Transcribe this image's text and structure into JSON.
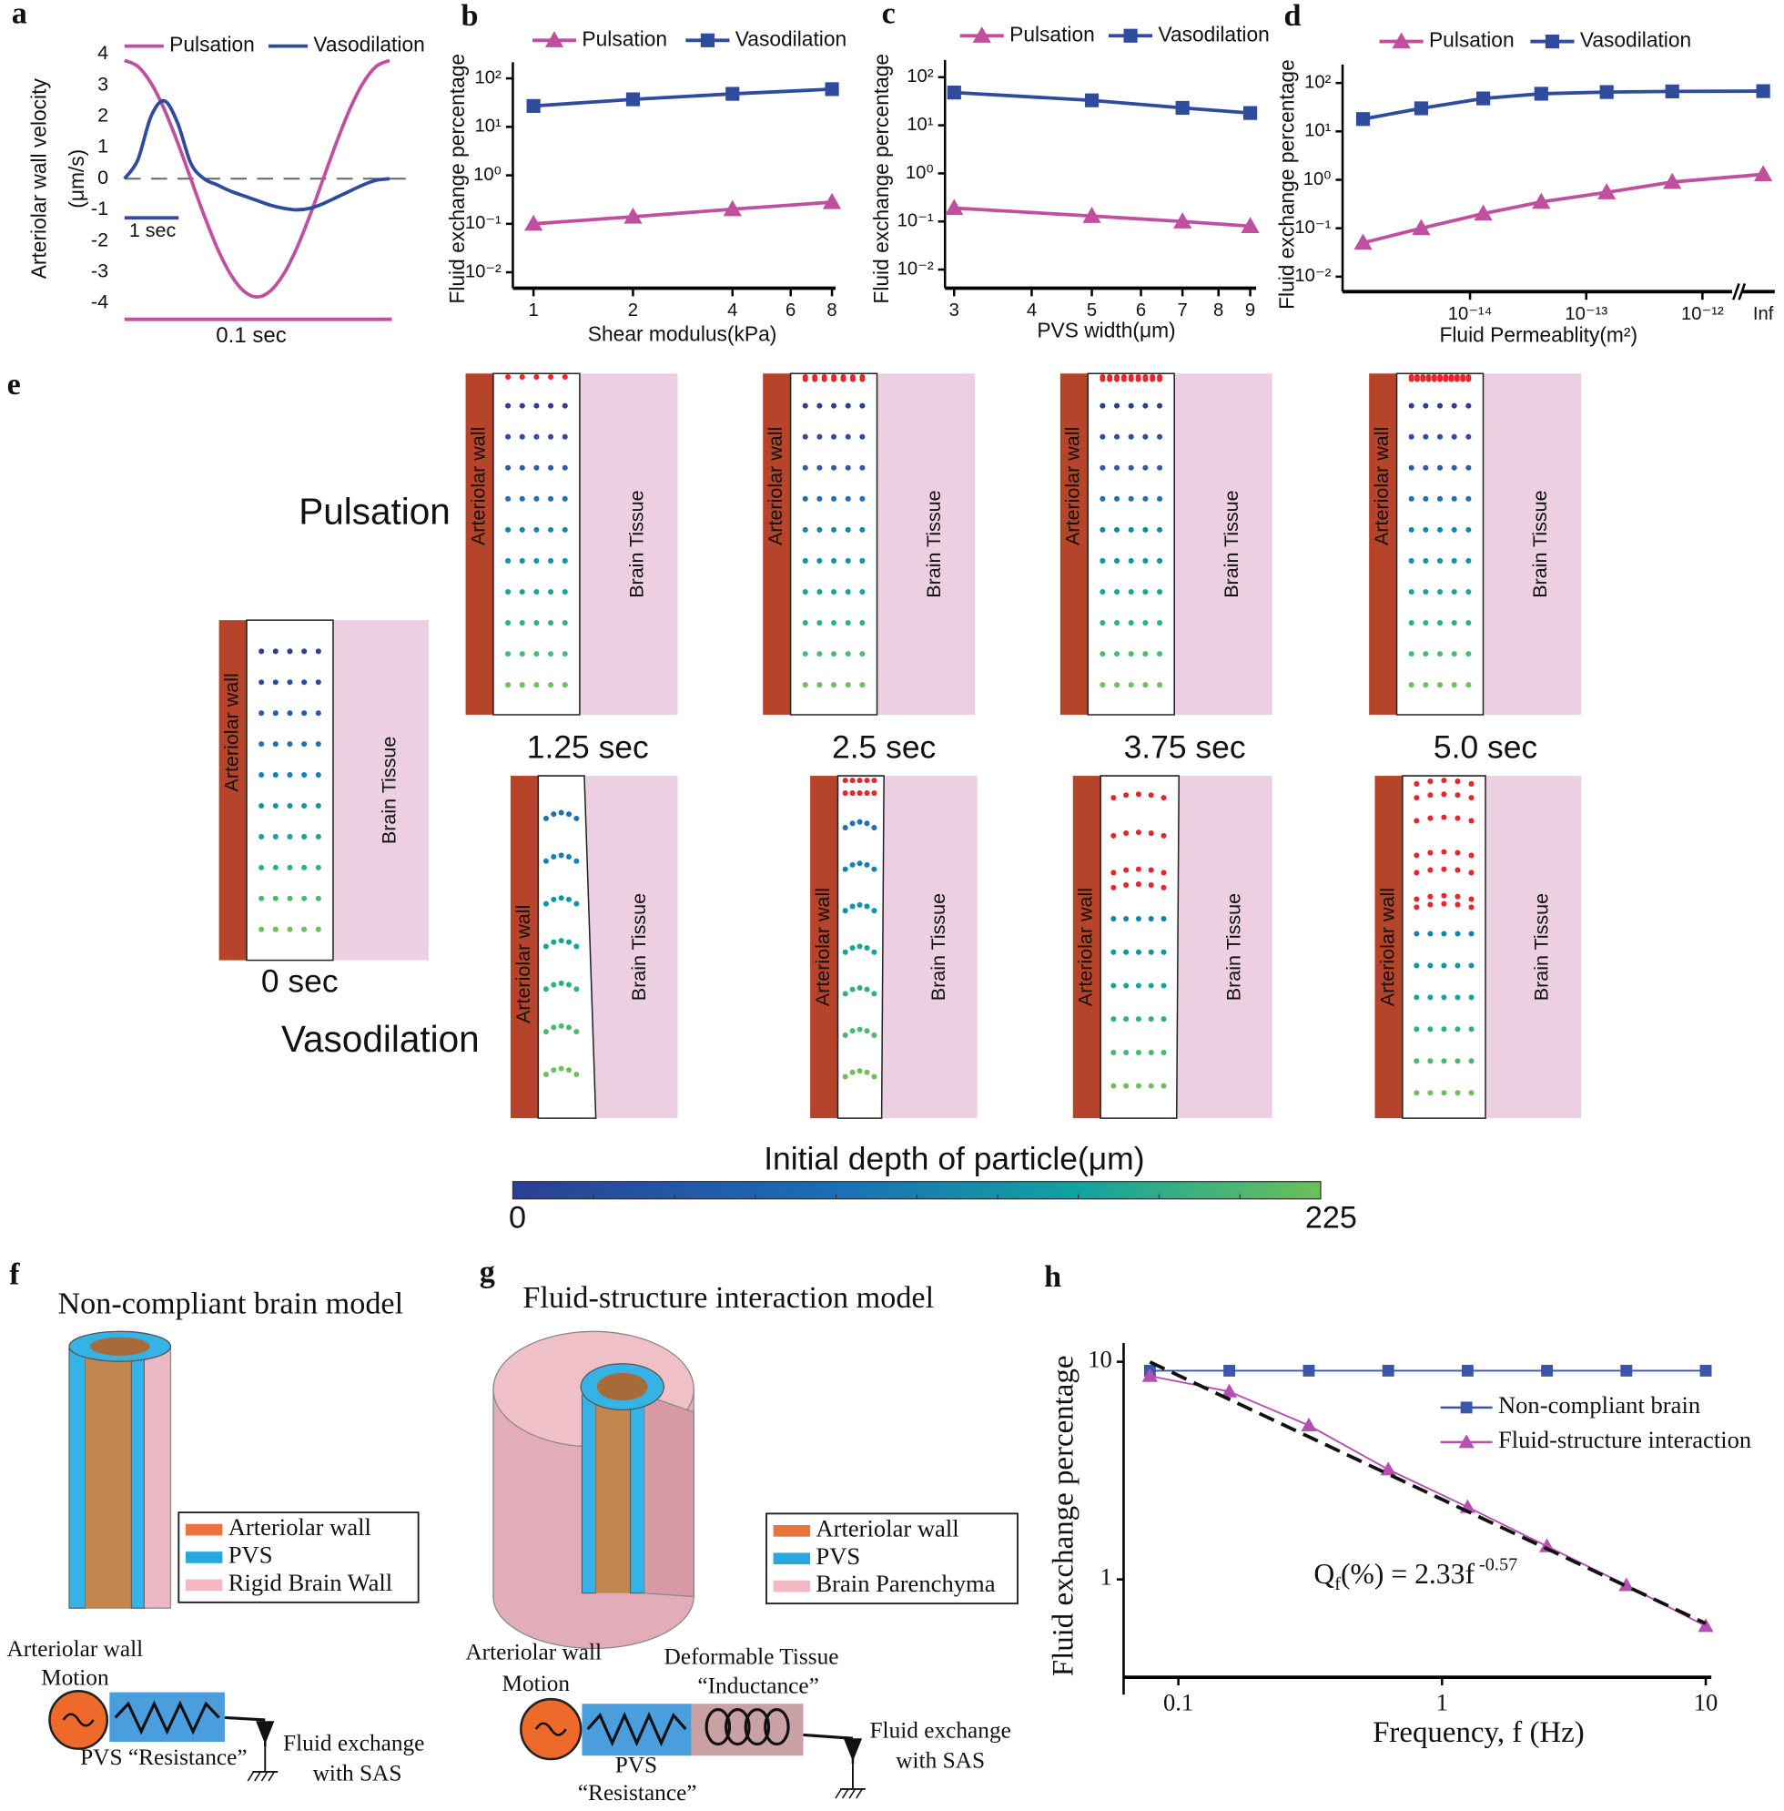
{
  "panel_letters": [
    "a",
    "b",
    "c",
    "d",
    "e",
    "f",
    "g",
    "h"
  ],
  "chart_data": [
    {
      "type": "line",
      "smooth": true,
      "ylabel": "Arteriolar wall velocity",
      "ylabel_unit": "(μm/s)",
      "x": [
        0,
        0.05,
        0.1,
        0.15,
        0.2,
        0.25,
        0.3,
        0.35,
        0.4,
        0.45,
        0.5,
        0.55,
        0.6,
        0.65,
        0.7,
        0.75,
        0.8,
        0.85,
        0.9,
        0.95,
        1
      ],
      "xlim": [
        0,
        1
      ],
      "ylim": [
        -4,
        4
      ],
      "yticks": [
        -4,
        -3,
        -2,
        -1,
        0,
        1,
        2,
        3,
        4
      ],
      "zero_line": true,
      "series": [
        {
          "name": "Pulsation",
          "color": "#c04fa0",
          "values": [
            3.8,
            3.61,
            3.07,
            2.23,
            1.17,
            0,
            -1.17,
            -2.23,
            -3.07,
            -3.61,
            -3.8,
            -3.61,
            -3.07,
            -2.23,
            -1.17,
            0,
            1.17,
            2.23,
            3.07,
            3.61,
            3.8
          ]
        },
        {
          "name": "Vasodilation",
          "color": "#2f4b9c",
          "values": [
            0,
            0.6,
            2.0,
            2.5,
            1.8,
            0.5,
            0,
            -0.2,
            -0.4,
            -0.55,
            -0.7,
            -0.85,
            -0.95,
            -1.0,
            -0.95,
            -0.8,
            -0.6,
            -0.4,
            -0.2,
            -0.05,
            0
          ]
        }
      ],
      "scale_bar_labels": [
        "1 sec",
        "0.1 sec"
      ]
    },
    {
      "type": "line",
      "log_x": true,
      "log_y": true,
      "xlabel": "Shear modulus(kPa)",
      "ylabel": "Fluid exchange percentage",
      "x": [
        1,
        2,
        4,
        8
      ],
      "xlim": [
        0.866,
        8.2
      ],
      "xticks": [
        1,
        2,
        4,
        6,
        8
      ],
      "ylim": [
        0.0047,
        155
      ],
      "yticks": [
        {
          "value": 0.01,
          "label": "10⁻²"
        },
        {
          "value": 0.1,
          "label": "10⁻¹"
        },
        {
          "value": 1,
          "label": "10⁰"
        },
        {
          "value": 10,
          "label": "10¹"
        },
        {
          "value": 100,
          "label": "10²"
        }
      ],
      "series": [
        {
          "name": "Pulsation",
          "color": "#c04fa0",
          "marker": "triangle",
          "values": [
            0.1,
            0.14,
            0.2,
            0.28
          ]
        },
        {
          "name": "Vasodilation",
          "color": "#2f4b9c",
          "marker": "square",
          "values": [
            27,
            37,
            48,
            60
          ]
        }
      ]
    },
    {
      "type": "line",
      "log_x": true,
      "log_y": true,
      "xlabel": "PVS width(μm)",
      "ylabel": "Fluid exchange percentage",
      "x": [
        3,
        5,
        7,
        9
      ],
      "xlim": [
        2.9,
        9.2
      ],
      "xticks": [
        3,
        4,
        5,
        6,
        7,
        8,
        9
      ],
      "ylim": [
        0.0041,
        164
      ],
      "yticks": [
        {
          "value": 0.01,
          "label": "10⁻²"
        },
        {
          "value": 0.1,
          "label": "10⁻¹"
        },
        {
          "value": 1,
          "label": "10⁰"
        },
        {
          "value": 10,
          "label": "10¹"
        },
        {
          "value": 100,
          "label": "10²"
        }
      ],
      "series": [
        {
          "name": "Pulsation",
          "color": "#c04fa0",
          "marker": "triangle",
          "values": [
            0.19,
            0.13,
            0.1,
            0.08
          ]
        },
        {
          "name": "Vasodilation",
          "color": "#2f4b9c",
          "marker": "square",
          "values": [
            48,
            33,
            23,
            18
          ]
        }
      ]
    },
    {
      "type": "line",
      "log_x": true,
      "log_y": true,
      "xlabel": "Fluid Permeablity(m²)",
      "ylabel": "Fluid exchange percentage",
      "x": [
        1.2e-15,
        3.8e-15,
        1.3e-14,
        4.1e-14,
        1.5e-13,
        5.5e-13
      ],
      "xlim": [
        8e-16,
        1.8e-12
      ],
      "xticks": [
        {
          "value": 1e-14,
          "label": "10⁻¹⁴"
        },
        {
          "value": 1e-13,
          "label": "10⁻¹³"
        },
        {
          "value": 1e-12,
          "label": "10⁻¹²"
        }
      ],
      "break_label": "Inf",
      "ylim": [
        0.0049,
        173
      ],
      "yticks": [
        {
          "value": 0.01,
          "label": "10⁻²"
        },
        {
          "value": 0.1,
          "label": "10⁻¹"
        },
        {
          "value": 1,
          "label": "10⁰"
        },
        {
          "value": 10,
          "label": "10¹"
        },
        {
          "value": 100,
          "label": "10²"
        }
      ],
      "series": [
        {
          "name": "Pulsation",
          "color": "#c04fa0",
          "marker": "triangle",
          "values": [
            0.05,
            0.1,
            0.2,
            0.35,
            0.55,
            0.9
          ],
          "inf_value": 1.3
        },
        {
          "name": "Vasodilation",
          "color": "#2f4b9c",
          "marker": "square",
          "values": [
            18,
            30,
            48,
            60,
            65,
            67
          ],
          "inf_value": 68
        }
      ]
    },
    {
      "type": "line",
      "log_x": true,
      "log_y": true,
      "xlabel": "Frequency, f (Hz)",
      "ylabel": "Fluid exchange percentage",
      "x": [
        0.078,
        0.156,
        0.3125,
        0.625,
        1.25,
        2.5,
        5,
        10
      ],
      "xlim": [
        0.062,
        10.5
      ],
      "xticks": [
        0.1,
        1,
        10
      ],
      "ylim": [
        0.355,
        12.2
      ],
      "yticks": [
        1,
        10
      ],
      "series": [
        {
          "name": "Non-compliant brain",
          "color": "#3b55a8",
          "marker": "square",
          "values": [
            9.1,
            9.1,
            9.1,
            9.1,
            9.1,
            9.1,
            9.1,
            9.1
          ]
        },
        {
          "name": "Fluid-structure interaction",
          "color": "#b550b0",
          "marker": "triangle",
          "values": [
            8.6,
            7.3,
            5.1,
            3.2,
            2.15,
            1.42,
            0.94,
            0.61
          ]
        }
      ],
      "fit": {
        "coef": 2.33,
        "exponent": -0.57,
        "label_main": "Q",
        "label_sub": "f",
        "label_mid": "(%) = 2.33f",
        "label_sup": " -0.57"
      }
    }
  ],
  "panel_e": {
    "row_labels": [
      "Pulsation",
      "Vasodilation"
    ],
    "times": [
      "1.25 sec",
      "2.5 sec",
      "3.75 sec",
      "5.0 sec"
    ],
    "initial_time": "0 sec",
    "wall": "Arteriolar wall",
    "tissue": "Brain Tissue",
    "colorbar": {
      "title": "Initial depth of particle(μm)",
      "min": 0,
      "max": 225
    }
  },
  "panel_f": {
    "title": "Non-compliant brain model",
    "legend": [
      "Arteriolar wall",
      "PVS",
      "Rigid Brain Wall"
    ],
    "motion": [
      "Arteriolar wall",
      "Motion"
    ],
    "resistance": "PVS “Resistance”",
    "exchange": [
      "Fluid exchange",
      "with SAS"
    ]
  },
  "panel_g": {
    "title": "Fluid-structure interaction model",
    "legend": [
      "Arteriolar wall",
      "PVS",
      "Brain Parenchyma"
    ],
    "motion": [
      "Arteriolar wall",
      "Motion"
    ],
    "inductance": [
      "Deformable Tissue",
      "“Inductance”"
    ],
    "resistance": [
      "PVS",
      "“Resistance”"
    ],
    "exchange": [
      "Fluid exchange",
      "with SAS"
    ]
  }
}
